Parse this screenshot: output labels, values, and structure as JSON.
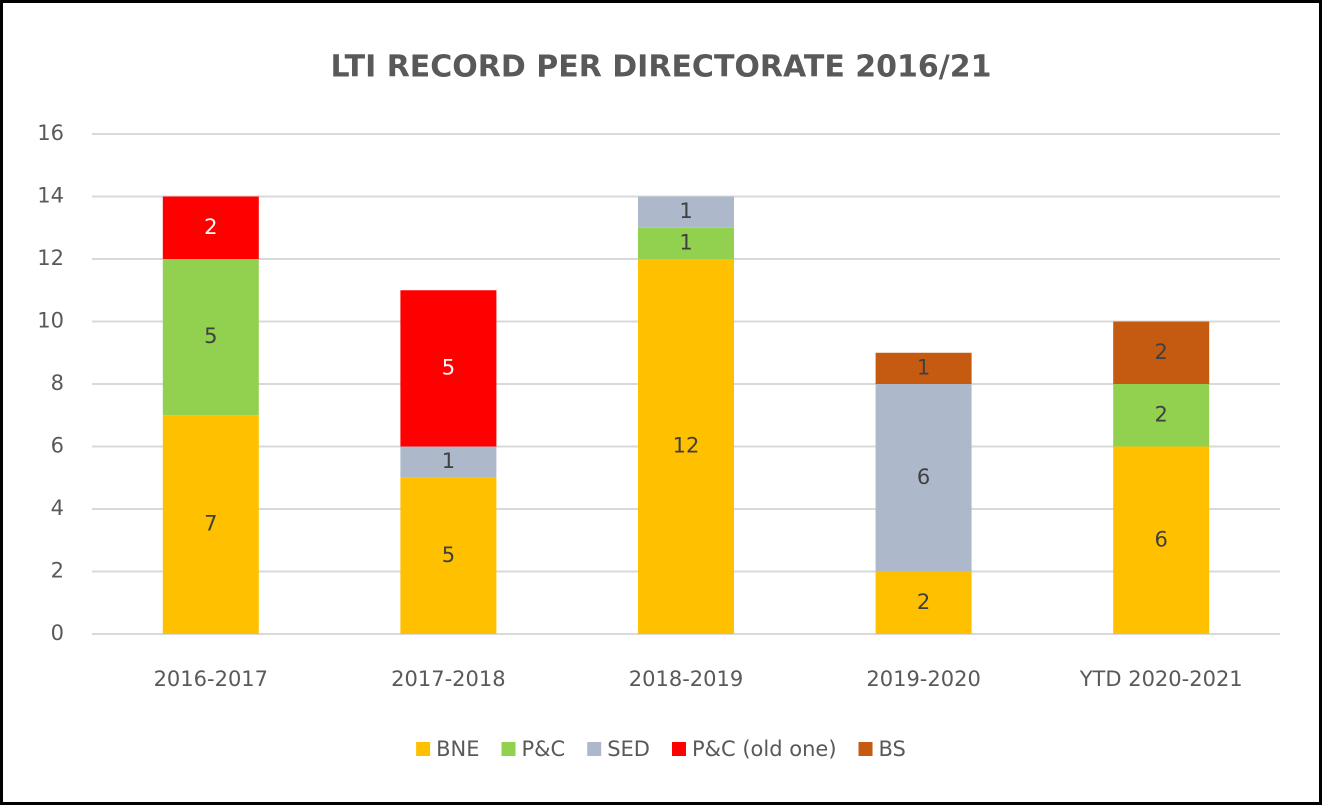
{
  "chart_data": {
    "type": "stacked_bar",
    "title": "LTI RECORD PER DIRECTORATE 2016/21",
    "categories": [
      "2016-2017",
      "2017-2018",
      "2018-2019",
      "2019-2020",
      "YTD 2020-2021"
    ],
    "series": [
      {
        "name": "BNE",
        "color": "#ffc000",
        "values": [
          7,
          5,
          12,
          2,
          6
        ]
      },
      {
        "name": "P&C",
        "color": "#92d050",
        "values": [
          5,
          0,
          1,
          0,
          2
        ]
      },
      {
        "name": "SED",
        "color": "#adb9ca",
        "values": [
          0,
          1,
          1,
          6,
          0
        ]
      },
      {
        "name": "P&C (old one)",
        "color": "#ff0000",
        "values": [
          2,
          5,
          0,
          0,
          0
        ]
      },
      {
        "name": "BS",
        "color": "#c55a11",
        "values": [
          0,
          0,
          0,
          1,
          2
        ]
      }
    ],
    "ylim": [
      0,
      16
    ],
    "yticks": [
      0,
      2,
      4,
      6,
      8,
      10,
      12,
      14,
      16
    ],
    "grid": true,
    "legend": "bottom"
  }
}
